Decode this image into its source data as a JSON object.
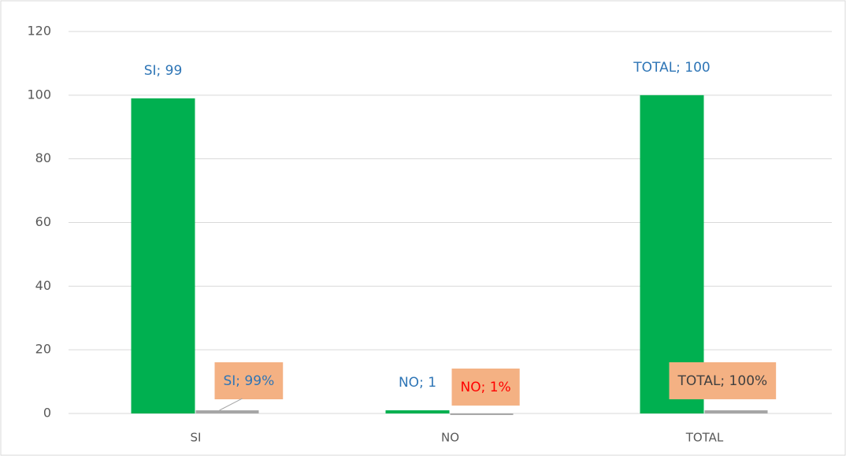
{
  "chart_data": {
    "type": "bar",
    "categories": [
      "SI",
      "NO",
      "TOTAL"
    ],
    "series": [
      {
        "color": "#00b050",
        "values": [
          99,
          1,
          100
        ],
        "value_labels": [
          "SI; 99",
          "NO; 1",
          "TOTAL; 100"
        ],
        "value_label_colors": [
          "#2e75b6",
          "#2e75b6",
          "#2e75b6"
        ]
      },
      {
        "color": "#a6a6a6",
        "values": [
          0.99,
          0.01,
          1
        ],
        "value_labels": [
          "SI; 99%",
          "NO; 1%",
          "TOTAL; 100%"
        ],
        "value_label_colors": [
          "#2e75b6",
          "#ff0000",
          "#404040"
        ],
        "label_box_color": "#f4b183"
      }
    ],
    "ylim": [
      0,
      120
    ],
    "yticks": [
      0,
      20,
      40,
      60,
      80,
      100,
      120
    ],
    "grid": true
  }
}
